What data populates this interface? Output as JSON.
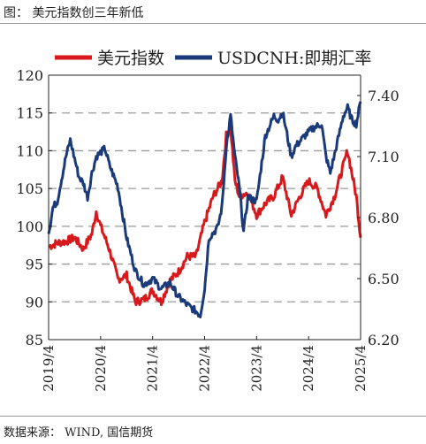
{
  "figure": {
    "caption": "图： 美元指数创三年新低",
    "source": "数据来源： WIND, 国信期货"
  },
  "chart_data": {
    "type": "line",
    "title": "",
    "x_ticks": [
      "2019/4",
      "2020/4",
      "2021/4",
      "2022/4",
      "2023/4",
      "2024/4",
      "2025/4"
    ],
    "y_left": {
      "ticks": [
        85,
        90,
        95,
        100,
        105,
        110,
        115,
        120
      ],
      "range": [
        85,
        120
      ]
    },
    "y_right": {
      "ticks": [
        "6.20",
        "6.50",
        "6.80",
        "7.10",
        "7.40"
      ],
      "range": [
        6.2,
        7.5
      ]
    },
    "legend_position": "top",
    "grid": "horizontal dashed",
    "series": [
      {
        "name": "美元指数",
        "axis": "left",
        "color": "#d7191c",
        "x": [
          "2019-04",
          "2019-06",
          "2019-08",
          "2019-10",
          "2019-12",
          "2020-02",
          "2020-03",
          "2020-04",
          "2020-06",
          "2020-08",
          "2020-10",
          "2020-12",
          "2021-02",
          "2021-04",
          "2021-06",
          "2021-08",
          "2021-10",
          "2021-12",
          "2022-02",
          "2022-04",
          "2022-06",
          "2022-08",
          "2022-09",
          "2022-10",
          "2022-11",
          "2022-12",
          "2023-02",
          "2023-04",
          "2023-06",
          "2023-08",
          "2023-10",
          "2023-12",
          "2024-02",
          "2024-04",
          "2024-06",
          "2024-08",
          "2024-10",
          "2024-12",
          "2025-01",
          "2025-02",
          "2025-03",
          "2025-04"
        ],
        "y": [
          97.3,
          97.8,
          98.0,
          98.5,
          97.0,
          99.0,
          102.0,
          100.0,
          97.0,
          93.0,
          93.5,
          90.0,
          90.3,
          91.5,
          90.0,
          92.8,
          94.0,
          96.0,
          96.0,
          100.5,
          104.0,
          106.0,
          112.0,
          113.0,
          106.0,
          104.0,
          104.5,
          101.5,
          103.0,
          104.0,
          106.5,
          101.5,
          104.0,
          106.0,
          105.0,
          101.5,
          104.0,
          108.0,
          110.0,
          107.0,
          104.0,
          98.5
        ]
      },
      {
        "name": "USDCNH:即期汇率",
        "axis": "right",
        "color": "#1a3a7a",
        "x": [
          "2019-04",
          "2019-05",
          "2019-06",
          "2019-08",
          "2019-09",
          "2019-11",
          "2019-12",
          "2020-01",
          "2020-02",
          "2020-03",
          "2020-05",
          "2020-06",
          "2020-08",
          "2020-10",
          "2020-12",
          "2021-02",
          "2021-04",
          "2021-06",
          "2021-08",
          "2021-10",
          "2021-12",
          "2022-02",
          "2022-03",
          "2022-04",
          "2022-05",
          "2022-07",
          "2022-08",
          "2022-09",
          "2022-10",
          "2022-11",
          "2022-12",
          "2023-01",
          "2023-02",
          "2023-04",
          "2023-06",
          "2023-08",
          "2023-09",
          "2023-10",
          "2023-12",
          "2024-01",
          "2024-03",
          "2024-05",
          "2024-07",
          "2024-08",
          "2024-09",
          "2024-10",
          "2024-12",
          "2025-01",
          "2025-02",
          "2025-03",
          "2025-04"
        ],
        "y": [
          6.72,
          6.85,
          6.88,
          7.1,
          7.18,
          7.0,
          6.97,
          6.9,
          7.02,
          7.1,
          7.14,
          7.06,
          6.95,
          6.7,
          6.54,
          6.47,
          6.5,
          6.45,
          6.48,
          6.41,
          6.37,
          6.34,
          6.32,
          6.45,
          6.7,
          6.75,
          6.85,
          7.15,
          7.3,
          7.1,
          6.95,
          6.73,
          6.9,
          6.88,
          7.2,
          7.3,
          7.28,
          7.32,
          7.1,
          7.15,
          7.2,
          7.24,
          7.26,
          7.1,
          7.02,
          7.11,
          7.3,
          7.34,
          7.28,
          7.26,
          7.37
        ]
      }
    ]
  }
}
